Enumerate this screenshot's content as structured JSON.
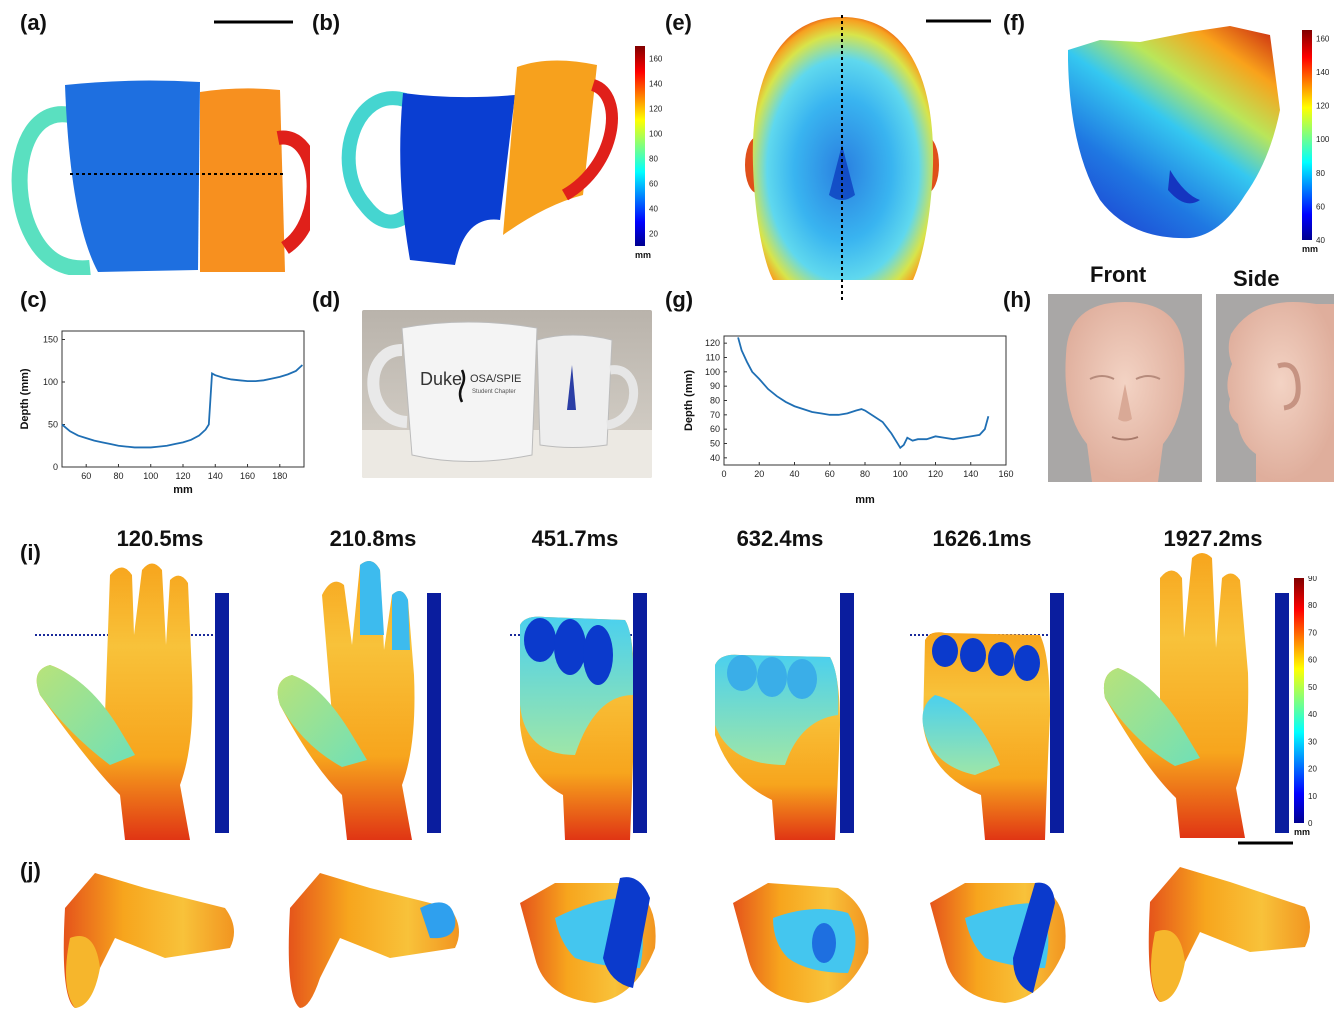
{
  "panels": {
    "a": "(a)",
    "b": "(b)",
    "c": "(c)",
    "d": "(d)",
    "e": "(e)",
    "f": "(f)",
    "g": "(g)",
    "h": "(h)",
    "i": "(i)",
    "j": "(j)"
  },
  "photo_h": {
    "front": "Front",
    "side": "Side"
  },
  "mug_photo": {
    "text": "Duke",
    "badge": "OSA/SPIE",
    "sub": "Student Chapter"
  },
  "colorbars": {
    "mug": {
      "unit": "mm",
      "ticks": [
        160,
        140,
        120,
        100,
        80,
        60,
        40,
        20
      ],
      "min": 10,
      "max": 170
    },
    "head": {
      "unit": "mm",
      "ticks": [
        160,
        140,
        120,
        100,
        80,
        60,
        40
      ],
      "min": 40,
      "max": 165
    },
    "hand": {
      "unit": "mm",
      "ticks": [
        90,
        80,
        70,
        60,
        50,
        40,
        30,
        20,
        10,
        0
      ],
      "min": 0,
      "max": 90
    }
  },
  "times": [
    "120.5ms",
    "210.8ms",
    "451.7ms",
    "632.4ms",
    "1626.1ms",
    "1927.2ms"
  ],
  "chart_data": [
    {
      "type": "line",
      "panel": "c",
      "xlabel": "mm",
      "ylabel": "Depth (mm)",
      "xlim": [
        45,
        195
      ],
      "ylim": [
        0,
        160
      ],
      "xticks": [
        60,
        80,
        100,
        120,
        140,
        160,
        180
      ],
      "yticks": [
        0,
        50,
        100,
        150
      ],
      "series": [
        {
          "x": [
            45,
            50,
            55,
            60,
            65,
            70,
            75,
            80,
            85,
            90,
            95,
            100,
            105,
            110,
            115,
            120,
            125,
            130,
            134,
            136,
            137,
            138,
            140,
            145,
            150,
            155,
            160,
            165,
            170,
            175,
            180,
            185,
            190,
            194
          ],
          "y": [
            50,
            42,
            37,
            34,
            31,
            29,
            27,
            25,
            24,
            23,
            23,
            23,
            24,
            25,
            27,
            29,
            32,
            37,
            44,
            50,
            80,
            110,
            108,
            105,
            103,
            102,
            101,
            101,
            102,
            104,
            106,
            109,
            113,
            120
          ]
        }
      ]
    },
    {
      "type": "line",
      "panel": "g",
      "xlabel": "mm",
      "ylabel": "Depth (mm)",
      "xlim": [
        0,
        160
      ],
      "ylim": [
        35,
        125
      ],
      "xticks": [
        0,
        20,
        40,
        60,
        80,
        100,
        120,
        140,
        160
      ],
      "yticks": [
        40,
        50,
        60,
        70,
        80,
        90,
        100,
        110,
        120
      ],
      "series": [
        {
          "x": [
            8,
            10,
            13,
            16,
            20,
            25,
            30,
            35,
            40,
            45,
            50,
            55,
            60,
            65,
            70,
            75,
            78,
            80,
            85,
            90,
            95,
            98,
            100,
            102,
            104,
            107,
            110,
            115,
            120,
            125,
            130,
            135,
            140,
            145,
            148,
            150
          ],
          "y": [
            124,
            115,
            107,
            100,
            95,
            88,
            83,
            79,
            76,
            74,
            72,
            71,
            70,
            70,
            71,
            73,
            74,
            73,
            69,
            65,
            57,
            51,
            47,
            49,
            54,
            52,
            53,
            53,
            55,
            54,
            53,
            54,
            55,
            56,
            60,
            69
          ]
        }
      ]
    }
  ]
}
